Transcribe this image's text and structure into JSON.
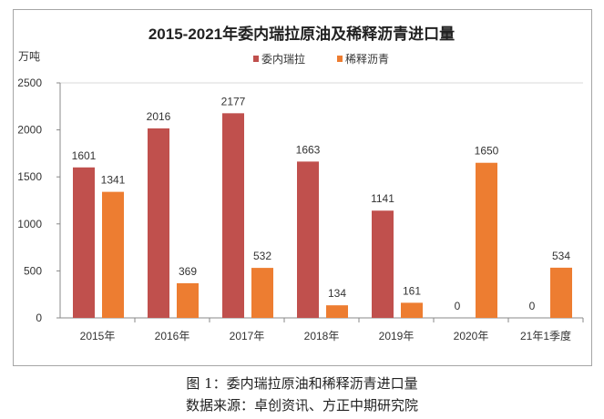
{
  "chart_data": {
    "type": "bar",
    "title": "2015-2021年委内瑞拉原油及稀释沥青进口量",
    "ylabel": "万吨",
    "xlabel": "",
    "ylim": [
      0,
      2500
    ],
    "yticks": [
      0,
      500,
      1000,
      1500,
      2000,
      2500
    ],
    "categories": [
      "2015年",
      "2016年",
      "2017年",
      "2018年",
      "2019年",
      "2020年",
      "21年1季度"
    ],
    "series": [
      {
        "name": "委内瑞拉",
        "color": "#C0504D",
        "values": [
          1601,
          2016,
          2177,
          1663,
          1141,
          0,
          0
        ]
      },
      {
        "name": "稀释沥青",
        "color": "#ED7D31",
        "values": [
          1341,
          369,
          532,
          134,
          161,
          1650,
          534
        ]
      }
    ],
    "legend": "top-center",
    "grid": false
  },
  "caption": {
    "line1": "图 1：委内瑞拉原油和稀释沥青进口量",
    "line2": "数据来源：卓创资讯、方正中期研究院"
  }
}
